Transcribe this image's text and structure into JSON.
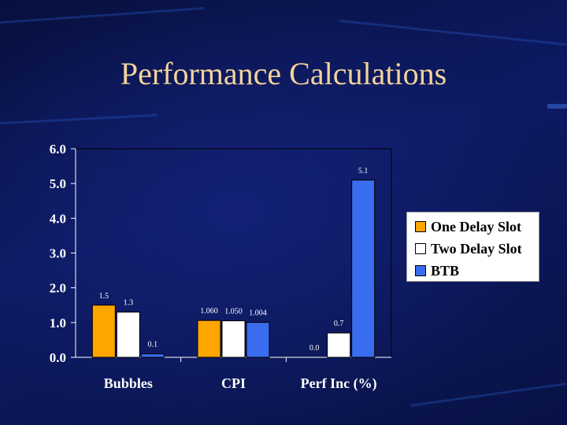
{
  "title": "Performance Calculations",
  "chart_data": {
    "type": "bar",
    "categories": [
      "Bubbles",
      "CPI",
      "Perf Inc (%)"
    ],
    "series": [
      {
        "name": "One Delay Slot",
        "values": [
          1.5,
          1.06,
          0.0
        ],
        "labels": [
          "1.5",
          "1.060",
          "0.0"
        ],
        "color": "#ffa500"
      },
      {
        "name": "Two Delay Slot",
        "values": [
          1.3,
          1.05,
          0.7
        ],
        "labels": [
          "1.3",
          "1.050",
          "0.7"
        ],
        "color": "#ffffff"
      },
      {
        "name": "BTB",
        "values": [
          0.1,
          1.004,
          5.1
        ],
        "labels": [
          "0.1",
          "1.004",
          "5.1"
        ],
        "color": "#3a6cf0"
      }
    ],
    "ylim": [
      0,
      6
    ],
    "yticks": [
      "0.0",
      "1.0",
      "2.0",
      "3.0",
      "4.0",
      "5.0",
      "6.0"
    ],
    "grid": false,
    "legend_position": "right"
  }
}
